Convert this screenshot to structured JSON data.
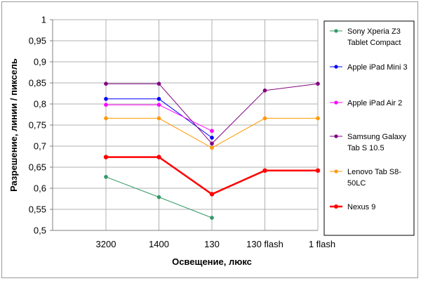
{
  "chart_data": {
    "type": "line",
    "categories": [
      "3200",
      "1400",
      "130",
      "130 flash",
      "1 flash"
    ],
    "xlabel": "Освещение, люкс",
    "ylabel": "Разрешение, линии / пиксель",
    "ylim": [
      0.5,
      1
    ],
    "yticks": [
      "0,5",
      "0,55",
      "0,6",
      "0,65",
      "0,7",
      "0,75",
      "0,8",
      "0,85",
      "0,9",
      "0,95",
      "1"
    ],
    "grid": true,
    "legend_position": "right",
    "series": [
      {
        "name": "Sony Xperia Z3 Tablet Compact",
        "legend_lines": [
          "Sony Xperia Z3",
          "Tablet Compact"
        ],
        "color": "#339966",
        "values": [
          0.627,
          0.579,
          0.53,
          null,
          null
        ]
      },
      {
        "name": "Apple iPad Mini 3",
        "legend_lines": [
          "Apple iPad Mini 3"
        ],
        "color": "#0000ff",
        "values": [
          0.812,
          0.812,
          0.72,
          null,
          null
        ]
      },
      {
        "name": "Apple iPad Air 2",
        "legend_lines": [
          "Apple iPad Air 2"
        ],
        "color": "#ff00ff",
        "values": [
          0.798,
          0.798,
          0.736,
          null,
          null
        ]
      },
      {
        "name": "Samsung Galaxy Tab S 10.5",
        "legend_lines": [
          "Samsung Galaxy",
          "Tab S 10.5"
        ],
        "color": "#800080",
        "values": [
          0.848,
          0.848,
          0.706,
          0.832,
          0.848
        ]
      },
      {
        "name": "Lenovo Tab S8-50LC",
        "legend_lines": [
          "Lenovo Tab S8-",
          "50LC"
        ],
        "color": "#ff9900",
        "values": [
          0.766,
          0.766,
          0.696,
          0.766,
          0.766
        ]
      },
      {
        "name": "Nexus 9",
        "legend_lines": [
          "Nexus 9"
        ],
        "color": "#ff0000",
        "bold": true,
        "values": [
          0.674,
          0.674,
          0.586,
          0.642,
          0.642
        ]
      }
    ]
  }
}
